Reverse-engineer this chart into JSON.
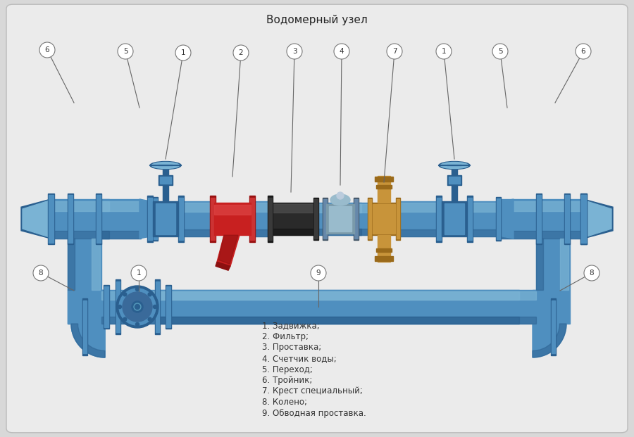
{
  "title": "Водомерный узел",
  "background_color": "#d8d8d8",
  "panel_color": "#e8e8e8",
  "pipe_color_main": "#5599cc",
  "pipe_color_dark": "#3377aa",
  "pipe_color_light": "#88bbdd",
  "pipe_color_highlight": "#aaccee",
  "red_color": "#cc2222",
  "red_dark": "#aa1111",
  "black_color": "#222222",
  "gold_color": "#cc9944",
  "gold_dark": "#aa7722",
  "legend_items": [
    "1. Задвижка;",
    "2. Фильтр;",
    "3. Проставка;",
    "4. Счетчик воды;",
    "5. Переход;",
    "6. Тройник;",
    "7. Крест специальный;",
    "8. Колено;",
    "9. Обводная проставка."
  ]
}
